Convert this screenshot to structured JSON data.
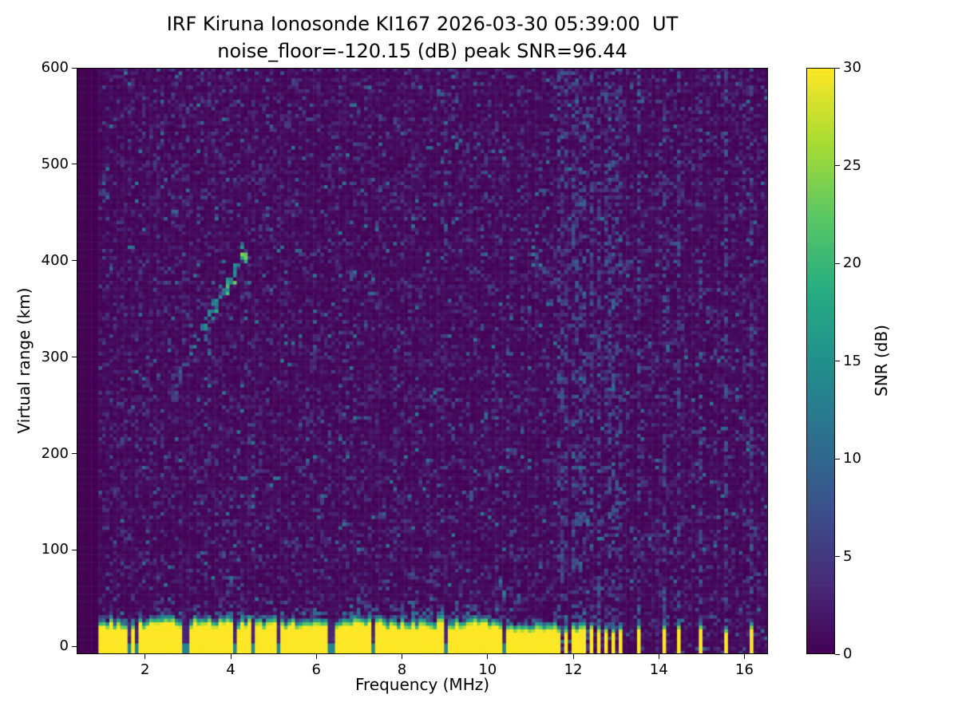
{
  "chart_data": {
    "type": "heatmap",
    "title": "IRF Kiruna Ionosonde KI167 2026-03-30 05:39:00  UT",
    "subtitle": "noise_floor=-120.15 (dB) peak SNR=96.44",
    "station": "IRF Kiruna Ionosonde KI167",
    "timestamp_ut": "2026-03-30 05:39:00",
    "noise_floor_db": -120.15,
    "peak_snr_db": 96.44,
    "xlabel": "Frequency (MHz)",
    "ylabel": "Virtual range (km)",
    "colorbar_label": "SNR (dB)",
    "colormap": "viridis",
    "grid": false,
    "xlim": [
      0.4,
      16.55
    ],
    "ylim": [
      -8,
      600
    ],
    "xticks": [
      2,
      4,
      6,
      8,
      10,
      12,
      14,
      16
    ],
    "yticks": [
      0,
      100,
      200,
      300,
      400,
      500,
      600
    ],
    "colorbar_range": [
      0,
      30
    ],
    "colorbar_ticks": [
      0,
      5,
      10,
      15,
      20,
      25,
      30
    ],
    "features": {
      "data_freq_start_mhz": 0.95,
      "ground_echo_band": {
        "range_km_bottom": -8,
        "range_km_top_mean": 30,
        "snr_db": 30
      },
      "band_notch_freqs_mhz": [
        1.62,
        1.78,
        2.88,
        3.0,
        4.1,
        4.55,
        5.15,
        6.3,
        6.42,
        7.35,
        9.05,
        10.35
      ],
      "rfi_intermittent_above_mhz": 11.6,
      "rfi_bar_freqs_mhz": [
        11.68,
        11.86,
        12.04,
        12.22,
        12.4,
        12.58,
        12.76,
        12.94,
        13.08,
        13.5,
        14.1,
        14.45,
        15.0,
        15.55,
        16.2
      ],
      "ionospheric_echo_trace": {
        "freq_mhz_start": 2.7,
        "freq_mhz_end": 4.3,
        "range_km_start": 262,
        "range_km_end": 404,
        "snr_db_range": [
          6,
          20
        ]
      },
      "background_noise_snr_db": [
        0,
        10
      ]
    }
  }
}
